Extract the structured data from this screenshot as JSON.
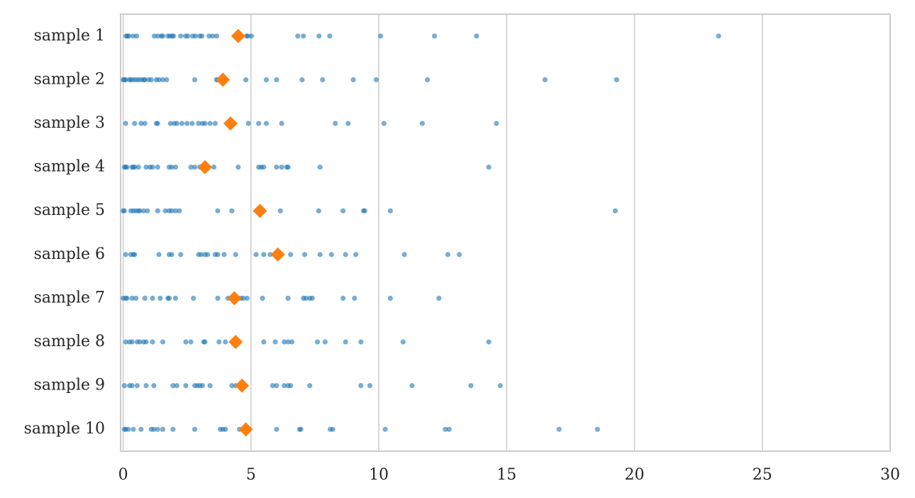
{
  "chart_data": {
    "type": "strip",
    "categories": [
      "sample 1",
      "sample 2",
      "sample 3",
      "sample 4",
      "sample 5",
      "sample 6",
      "sample 7",
      "sample 8",
      "sample 9",
      "sample 10"
    ],
    "values": [
      [
        0.11,
        0.17,
        0.22,
        0.39,
        0.53,
        1.22,
        1.36,
        1.5,
        1.55,
        1.75,
        1.83,
        1.92,
        1.97,
        2.25,
        2.44,
        2.53,
        2.72,
        2.83,
        3.0,
        3.08,
        3.36,
        3.5,
        3.66,
        4.83,
        4.88,
        5.02,
        6.83,
        7.05,
        7.66,
        8.08,
        10.07,
        12.18,
        13.82,
        23.29
      ],
      [
        0.0,
        0.05,
        0.1,
        0.25,
        0.3,
        0.4,
        0.5,
        0.6,
        0.7,
        0.8,
        0.85,
        1.0,
        1.1,
        1.3,
        1.4,
        1.55,
        1.7,
        2.8,
        3.65,
        3.7,
        4.8,
        5.6,
        6.0,
        7.0,
        7.8,
        9.0,
        9.9,
        11.9,
        16.5,
        19.3
      ],
      [
        0.1,
        0.45,
        0.7,
        0.85,
        1.3,
        1.35,
        1.85,
        2.0,
        2.1,
        2.3,
        2.5,
        2.7,
        2.95,
        3.1,
        3.2,
        3.4,
        3.6,
        4.9,
        5.3,
        5.6,
        6.2,
        8.3,
        8.8,
        10.2,
        11.7,
        14.6
      ],
      [
        0.05,
        0.1,
        0.15,
        0.35,
        0.4,
        0.45,
        0.6,
        0.9,
        1.05,
        1.15,
        1.35,
        1.8,
        1.9,
        2.05,
        2.65,
        2.8,
        3.0,
        3.55,
        4.5,
        5.3,
        5.4,
        5.5,
        6.0,
        6.2,
        6.4,
        6.45,
        7.7,
        14.3
      ],
      [
        0,
        0.05,
        0.3,
        0.4,
        0.5,
        0.6,
        0.65,
        0.8,
        0.95,
        1.35,
        1.65,
        1.8,
        1.9,
        2.05,
        2.2,
        3.7,
        4.25,
        5.35,
        6.15,
        7.65,
        8.6,
        9.4,
        9.45,
        10.45,
        19.25
      ],
      [
        0.1,
        0.3,
        0.4,
        0.45,
        1.4,
        1.8,
        1.9,
        2.25,
        2.95,
        3.05,
        3.2,
        3.3,
        3.6,
        3.7,
        3.95,
        4.4,
        5.2,
        5.5,
        5.75,
        6.0,
        6.55,
        7.1,
        7.7,
        8.15,
        8.7,
        9.1,
        11.0,
        12.7,
        13.15
      ],
      [
        0,
        0.1,
        0.15,
        0.35,
        0.5,
        0.85,
        1.15,
        1.45,
        1.75,
        1.8,
        2.05,
        2.75,
        3.7,
        4.1,
        4.3,
        4.5,
        4.6,
        4.7,
        4.85,
        5.45,
        6.45,
        7.05,
        7.15,
        7.3,
        7.4,
        8.6,
        9.05,
        10.45,
        12.35
      ],
      [
        0.1,
        0.25,
        0.35,
        0.55,
        0.65,
        0.8,
        0.9,
        1.15,
        1.55,
        2.45,
        2.65,
        3.15,
        3.2,
        3.75,
        4.0,
        5.5,
        5.95,
        6.3,
        6.45,
        6.6,
        7.6,
        7.9,
        8.7,
        9.3,
        10.95,
        14.3
      ],
      [
        0.05,
        0.25,
        0.35,
        0.55,
        0.9,
        1.2,
        1.95,
        2.1,
        2.45,
        2.8,
        2.9,
        3.0,
        3.1,
        3.4,
        4.25,
        4.4,
        5.85,
        6.0,
        6.3,
        6.45,
        6.55,
        7.3,
        9.3,
        9.65,
        11.3,
        13.6,
        14.75
      ],
      [
        0.05,
        0.1,
        0.2,
        0.4,
        0.7,
        1.1,
        1.2,
        1.35,
        1.55,
        1.95,
        2.8,
        3.8,
        3.9,
        4.0,
        4.55,
        6.0,
        6.9,
        6.95,
        8.1,
        8.2,
        10.25,
        12.6,
        12.75,
        17.05,
        18.55
      ]
    ],
    "means": [
      4.5,
      3.9,
      4.2,
      3.2,
      5.35,
      6.05,
      4.35,
      4.4,
      4.65,
      4.8
    ],
    "color": "#1f77b4",
    "mean_color": "#ff7f0e",
    "xlim": [
      -0.1,
      30
    ],
    "xticks": [
      0,
      5,
      10,
      15,
      20,
      25,
      30
    ],
    "grid": true
  }
}
